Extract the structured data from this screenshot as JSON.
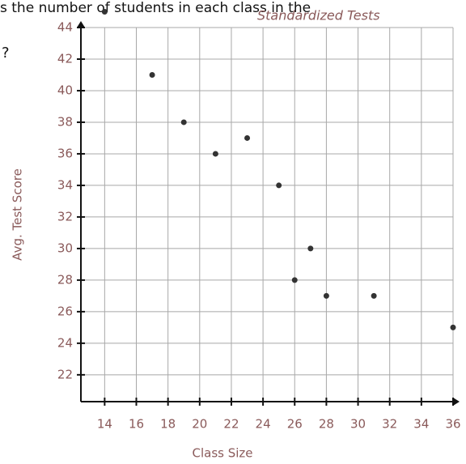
{
  "header": {
    "text": "s the number of students in each class in the",
    "note": "Standardized Tests",
    "mark": "?"
  },
  "chart_data": {
    "type": "scatter",
    "x_label": "Class Size",
    "y_label": "Avg. Test Score",
    "x": [
      14,
      17,
      19,
      21,
      23,
      25,
      27,
      26,
      28,
      31,
      36
    ],
    "values": [
      45,
      41,
      38,
      36,
      37,
      34,
      30,
      28,
      27,
      27,
      25
    ],
    "color": "#333333",
    "xlim": [
      12.5,
      36
    ],
    "ylim": [
      20.3,
      44
    ],
    "xticks": [
      14,
      16,
      18,
      20,
      22,
      24,
      26,
      28,
      30,
      32,
      34,
      36
    ],
    "yticks": [
      22,
      24,
      26,
      28,
      30,
      32,
      34,
      36,
      38,
      40,
      42,
      44
    ],
    "grid": true
  }
}
